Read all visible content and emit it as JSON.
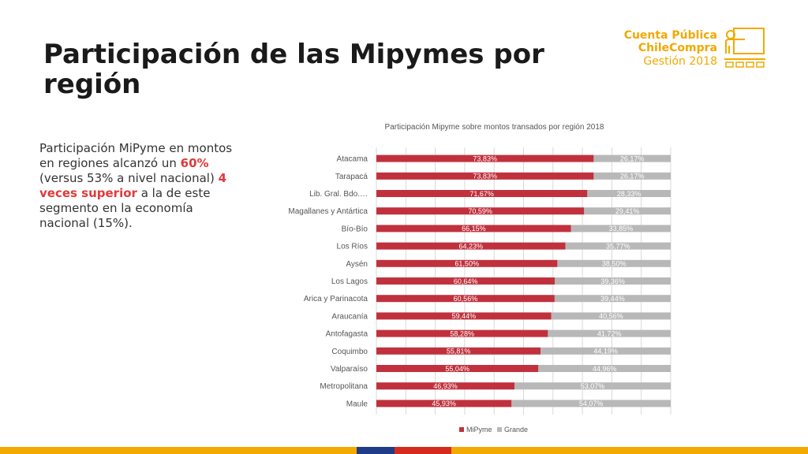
{
  "slide": {
    "title": "Participación de las Mipymes por región",
    "logo": {
      "line1": "Cuenta Pública",
      "line2": "ChileCompra",
      "line3": "Gestión 2018"
    },
    "side_text": {
      "part1": "Participación MiPyme en montos en regiones alcanzó un ",
      "highlight1": "60%",
      "part2": " (versus 53% a nivel nacional) ",
      "highlight2": "4 veces superior",
      "part3": " a la de este segmento en la economía nacional (15%)."
    },
    "bottom_bar_colors": [
      "#f2a900",
      "#1f3c88",
      "#d52b1e",
      "#f2a900"
    ]
  },
  "chart_data": {
    "type": "bar",
    "orientation": "horizontal",
    "stacked": true,
    "title": "Participación Mipyme sobre montos transados por región 2018",
    "categories": [
      "Atacama",
      "Tarapacá",
      "Lib. Gral. Bdo.…",
      "Magallanes y Antártica",
      "Bío-Bío",
      "Los Ríos",
      "Aysén",
      "Los Lagos",
      "Arica y Parinacota",
      "Araucanía",
      "Antofagasta",
      "Coquimbo",
      "Valparaíso",
      "Metropolitana",
      "Maule"
    ],
    "series": [
      {
        "name": "MiPyme",
        "color": "#c0313d",
        "values": [
          73.83,
          73.83,
          71.67,
          70.59,
          66.15,
          64.23,
          61.5,
          60.64,
          60.56,
          59.44,
          58.28,
          55.81,
          55.04,
          46.93,
          45.93
        ],
        "labels": [
          "73,83%",
          "73,83%",
          "71,67%",
          "70,59%",
          "66,15%",
          "64,23%",
          "61,50%",
          "60,64%",
          "60,56%",
          "59,44%",
          "58,28%",
          "55,81%",
          "55,04%",
          "46,93%",
          "45,93%"
        ]
      },
      {
        "name": "Grande",
        "color": "#b8b8b8",
        "values": [
          26.17,
          26.17,
          28.33,
          29.41,
          33.85,
          35.77,
          38.5,
          39.36,
          39.44,
          40.56,
          41.72,
          44.19,
          44.96,
          53.07,
          54.07
        ],
        "labels": [
          "26,17%",
          "26,17%",
          "28,33%",
          "29,41%",
          "33,85%",
          "35,77%",
          "38,50%",
          "39,36%",
          "39,44%",
          "40,56%",
          "41,72%",
          "44,19%",
          "44,96%",
          "53,07%",
          "54,07%"
        ]
      }
    ],
    "xlim": [
      0,
      100
    ],
    "grid": true,
    "legend": "bottom"
  }
}
